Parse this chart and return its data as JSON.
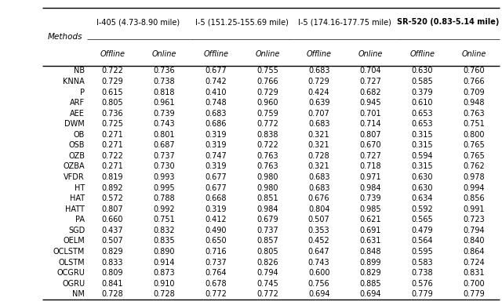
{
  "col_header_top": [
    "I-405 (4.73-8.90 mile)",
    "I-5 (151.25-155.69 mile)",
    "I-5 (174.16-177.75 mile)",
    "SR-520 (0.83-5.14 mile)"
  ],
  "col_header_top_bold": [
    false,
    false,
    false,
    true
  ],
  "col_header_sub": [
    "Offline",
    "Online",
    "Offline",
    "Online",
    "Offline",
    "Online",
    "Offline",
    "Online"
  ],
  "row_labels": [
    "NB",
    "KNNA",
    "P",
    "ARF",
    "AEE",
    "DWM",
    "OB",
    "OSB",
    "OZB",
    "OZBA",
    "VFDR",
    "HT",
    "HAT",
    "HATT",
    "PA",
    "SGD",
    "OELM",
    "OCLSTM",
    "OLSTM",
    "OCGRU",
    "OGRU",
    "NM"
  ],
  "data": [
    [
      0.722,
      0.736,
      0.677,
      0.755,
      0.683,
      0.704,
      0.63,
      0.76
    ],
    [
      0.729,
      0.738,
      0.742,
      0.766,
      0.729,
      0.727,
      0.585,
      0.766
    ],
    [
      0.615,
      0.818,
      0.41,
      0.729,
      0.424,
      0.682,
      0.379,
      0.709
    ],
    [
      0.805,
      0.961,
      0.748,
      0.96,
      0.639,
      0.945,
      0.61,
      0.948
    ],
    [
      0.736,
      0.739,
      0.683,
      0.759,
      0.707,
      0.701,
      0.653,
      0.763
    ],
    [
      0.725,
      0.743,
      0.686,
      0.772,
      0.683,
      0.714,
      0.653,
      0.751
    ],
    [
      0.271,
      0.801,
      0.319,
      0.838,
      0.321,
      0.807,
      0.315,
      0.8
    ],
    [
      0.271,
      0.687,
      0.319,
      0.722,
      0.321,
      0.67,
      0.315,
      0.765
    ],
    [
      0.722,
      0.737,
      0.747,
      0.763,
      0.728,
      0.727,
      0.594,
      0.765
    ],
    [
      0.271,
      0.73,
      0.319,
      0.763,
      0.321,
      0.718,
      0.315,
      0.762
    ],
    [
      0.819,
      0.993,
      0.677,
      0.98,
      0.683,
      0.971,
      0.63,
      0.978
    ],
    [
      0.892,
      0.995,
      0.677,
      0.98,
      0.683,
      0.984,
      0.63,
      0.994
    ],
    [
      0.572,
      0.788,
      0.668,
      0.851,
      0.676,
      0.739,
      0.634,
      0.856
    ],
    [
      0.807,
      0.992,
      0.319,
      0.984,
      0.804,
      0.985,
      0.592,
      0.991
    ],
    [
      0.66,
      0.751,
      0.412,
      0.679,
      0.507,
      0.621,
      0.565,
      0.723
    ],
    [
      0.437,
      0.832,
      0.49,
      0.737,
      0.353,
      0.691,
      0.479,
      0.794
    ],
    [
      0.507,
      0.835,
      0.65,
      0.857,
      0.452,
      0.631,
      0.564,
      0.84
    ],
    [
      0.829,
      0.89,
      0.716,
      0.805,
      0.647,
      0.848,
      0.595,
      0.864
    ],
    [
      0.833,
      0.914,
      0.737,
      0.826,
      0.743,
      0.899,
      0.583,
      0.724
    ],
    [
      0.809,
      0.873,
      0.764,
      0.794,
      0.6,
      0.829,
      0.738,
      0.831
    ],
    [
      0.841,
      0.91,
      0.678,
      0.745,
      0.756,
      0.885,
      0.576,
      0.7
    ],
    [
      0.728,
      0.728,
      0.772,
      0.772,
      0.694,
      0.694,
      0.779,
      0.779
    ]
  ],
  "bg_color": "#ffffff",
  "text_color": "#000000",
  "figsize": [
    6.4,
    3.89
  ],
  "dpi": 100
}
